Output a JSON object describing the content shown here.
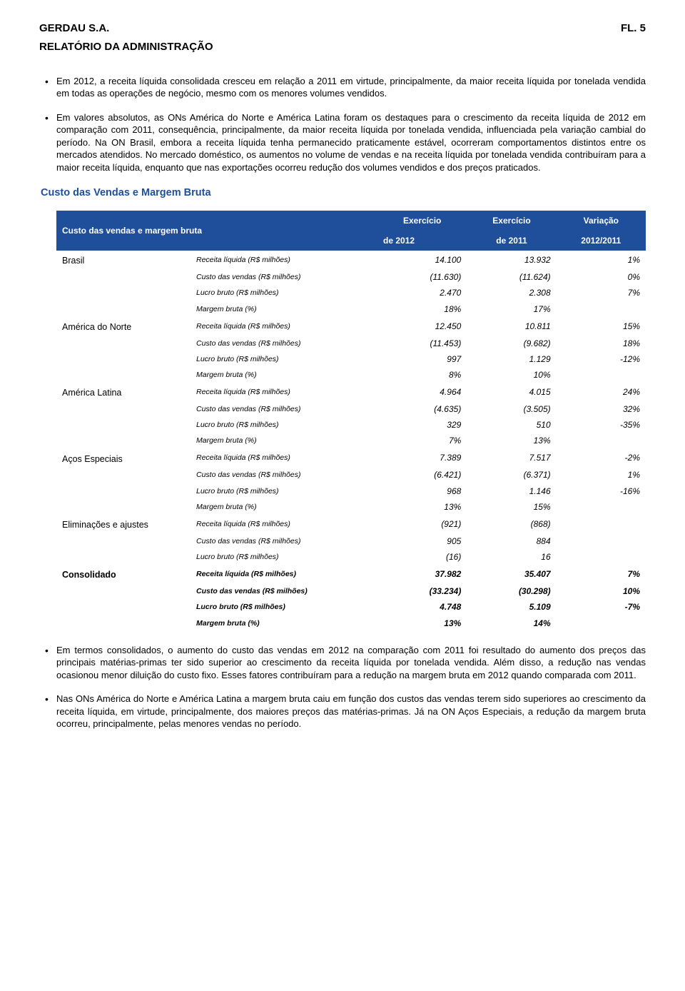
{
  "header": {
    "company": "GERDAU S.A.",
    "page": "FL. 5",
    "report_title": "RELATÓRIO DA ADMINISTRAÇÃO"
  },
  "paragraphs": {
    "p1": "Em 2012, a receita líquida consolidada cresceu em relação a 2011 em virtude, principalmente, da maior receita líquida por tonelada vendida em todas as operações de negócio, mesmo com os menores volumes vendidos.",
    "p2": "Em valores absolutos, as ONs América do Norte e América Latina foram os destaques para o crescimento da receita líquida de 2012 em comparação com 2011, consequência, principalmente, da maior receita líquida por tonelada vendida, influenciada pela variação cambial do período. Na ON Brasil, embora a receita líquida tenha permanecido praticamente estável, ocorreram comportamentos distintos entre os mercados atendidos. No mercado doméstico, os aumentos no volume de vendas e na receita líquida por tonelada vendida contribuíram para a maior receita líquida, enquanto que nas exportações ocorreu redução dos volumes vendidos e dos preços praticados.",
    "p3": "Em termos consolidados, o aumento do custo das vendas em 2012 na comparação com 2011 foi resultado do aumento dos preços das principais matérias-primas ter sido superior ao crescimento da receita líquida por tonelada vendida. Além disso, a redução nas vendas ocasionou menor diluição do custo fixo. Esses fatores contribuíram para a redução na margem bruta em 2012 quando comparada com 2011.",
    "p4": "Nas ONs América do Norte e América Latina a margem bruta caiu em função dos custos das vendas terem sido superiores ao crescimento da receita líquida, em virtude, principalmente, dos maiores preços das matérias-primas. Já na ON Aços Especiais, a redução da margem bruta ocorreu, principalmente, pelas menores vendas no período."
  },
  "section_title": "Custo das Vendas e Margem Bruta",
  "table": {
    "header": {
      "title": "Custo das vendas e margem bruta",
      "col1_l1": "Exercício",
      "col1_l2": "de 2012",
      "col2_l1": "Exercício",
      "col2_l2": "de 2011",
      "col3_l1": "Variação",
      "col3_l2": "2012/2011"
    },
    "metrics": {
      "rl": "Receita líquida (R$ milhões)",
      "cv": "Custo das vendas (R$ milhões)",
      "lb": "Lucro bruto (R$ milhões)",
      "mb": "Margem bruta (%)"
    },
    "segments": [
      {
        "name": "Brasil",
        "rows": [
          {
            "m": "rl",
            "v12": "14.100",
            "v11": "13.932",
            "var": "1%"
          },
          {
            "m": "cv",
            "v12": "(11.630)",
            "v11": "(11.624)",
            "var": "0%"
          },
          {
            "m": "lb",
            "v12": "2.470",
            "v11": "2.308",
            "var": "7%"
          },
          {
            "m": "mb",
            "v12": "18%",
            "v11": "17%",
            "var": ""
          }
        ]
      },
      {
        "name": "América do Norte",
        "rows": [
          {
            "m": "rl",
            "v12": "12.450",
            "v11": "10.811",
            "var": "15%"
          },
          {
            "m": "cv",
            "v12": "(11.453)",
            "v11": "(9.682)",
            "var": "18%"
          },
          {
            "m": "lb",
            "v12": "997",
            "v11": "1.129",
            "var": "-12%"
          },
          {
            "m": "mb",
            "v12": "8%",
            "v11": "10%",
            "var": ""
          }
        ]
      },
      {
        "name": "América Latina",
        "rows": [
          {
            "m": "rl",
            "v12": "4.964",
            "v11": "4.015",
            "var": "24%"
          },
          {
            "m": "cv",
            "v12": "(4.635)",
            "v11": "(3.505)",
            "var": "32%"
          },
          {
            "m": "lb",
            "v12": "329",
            "v11": "510",
            "var": "-35%"
          },
          {
            "m": "mb",
            "v12": "7%",
            "v11": "13%",
            "var": ""
          }
        ]
      },
      {
        "name": "Aços Especiais",
        "rows": [
          {
            "m": "rl",
            "v12": "7.389",
            "v11": "7.517",
            "var": "-2%"
          },
          {
            "m": "cv",
            "v12": "(6.421)",
            "v11": "(6.371)",
            "var": "1%"
          },
          {
            "m": "lb",
            "v12": "968",
            "v11": "1.146",
            "var": "-16%"
          },
          {
            "m": "mb",
            "v12": "13%",
            "v11": "15%",
            "var": ""
          }
        ]
      },
      {
        "name": "Eliminações e ajustes",
        "rows": [
          {
            "m": "rl",
            "v12": "(921)",
            "v11": "(868)",
            "var": ""
          },
          {
            "m": "cv",
            "v12": "905",
            "v11": "884",
            "var": ""
          },
          {
            "m": "lb",
            "v12": "(16)",
            "v11": "16",
            "var": ""
          }
        ]
      },
      {
        "name": "Consolidado",
        "bold": true,
        "rows": [
          {
            "m": "rl",
            "v12": "37.982",
            "v11": "35.407",
            "var": "7%"
          },
          {
            "m": "cv",
            "v12": "(33.234)",
            "v11": "(30.298)",
            "var": "10%"
          },
          {
            "m": "lb",
            "v12": "4.748",
            "v11": "5.109",
            "var": "-7%"
          },
          {
            "m": "mb",
            "v12": "13%",
            "v11": "14%",
            "var": ""
          }
        ]
      }
    ]
  }
}
